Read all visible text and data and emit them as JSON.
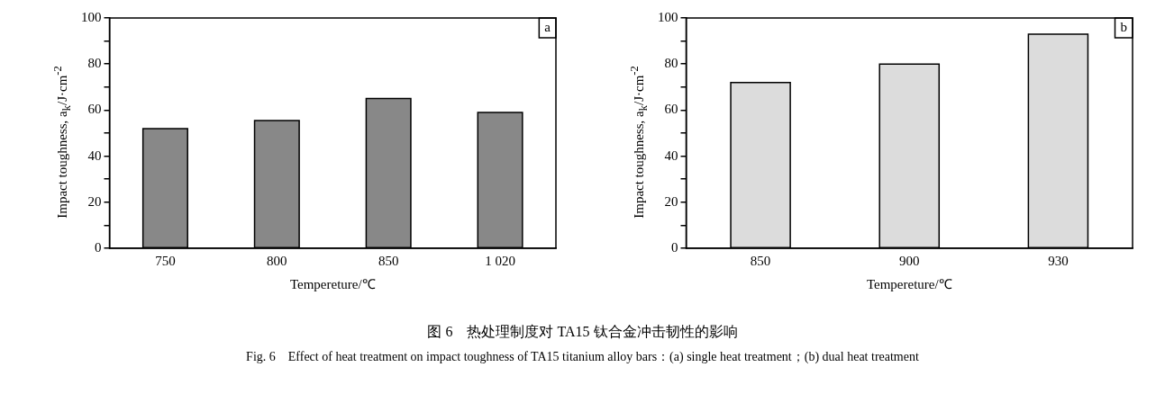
{
  "chart_data": [
    {
      "type": "bar",
      "categories": [
        "750",
        "800",
        "850",
        "1 020"
      ],
      "values": [
        52,
        55.5,
        65,
        59
      ],
      "color": "#888888",
      "xlabel": "Tempereture/℃",
      "ylabel": "Impact toughness, a$_{k}$/J·cm$^{-2}$",
      "ylim": [
        0,
        100
      ],
      "yticks": [
        0,
        {
          "value": 10,
          "label": null
        },
        20,
        {
          "value": 30,
          "label": null
        },
        40,
        {
          "value": 50,
          "label": null
        },
        60,
        {
          "value": 70,
          "label": null
        },
        80,
        {
          "value": 90,
          "label": null
        },
        100
      ],
      "grid": false,
      "legend": false,
      "annotations": [
        "a"
      ]
    },
    {
      "type": "bar",
      "categories": [
        "850",
        "900",
        "930"
      ],
      "values": [
        72,
        80,
        93
      ],
      "color": "#dcdcdc",
      "xlabel": "Tempereture/℃",
      "ylabel": "Impact toughness, a$_{k}$/J·cm$^{-2}$",
      "ylim": [
        0,
        100
      ],
      "yticks": [
        0,
        {
          "value": 10,
          "label": null
        },
        20,
        {
          "value": 30,
          "label": null
        },
        40,
        {
          "value": 50,
          "label": null
        },
        60,
        {
          "value": 70,
          "label": null
        },
        80,
        {
          "value": 90,
          "label": null
        },
        100
      ],
      "grid": false,
      "legend": false,
      "annotations": [
        "b",
        "图 6　热处理制度对 TA15 钛合金冲击韧性的影响",
        "Fig. 6　Effect of heat treatment on impact toughness of TA15 titanium alloy bars：(a) single heat treatment；(b) dual heat treatment"
      ]
    }
  ]
}
